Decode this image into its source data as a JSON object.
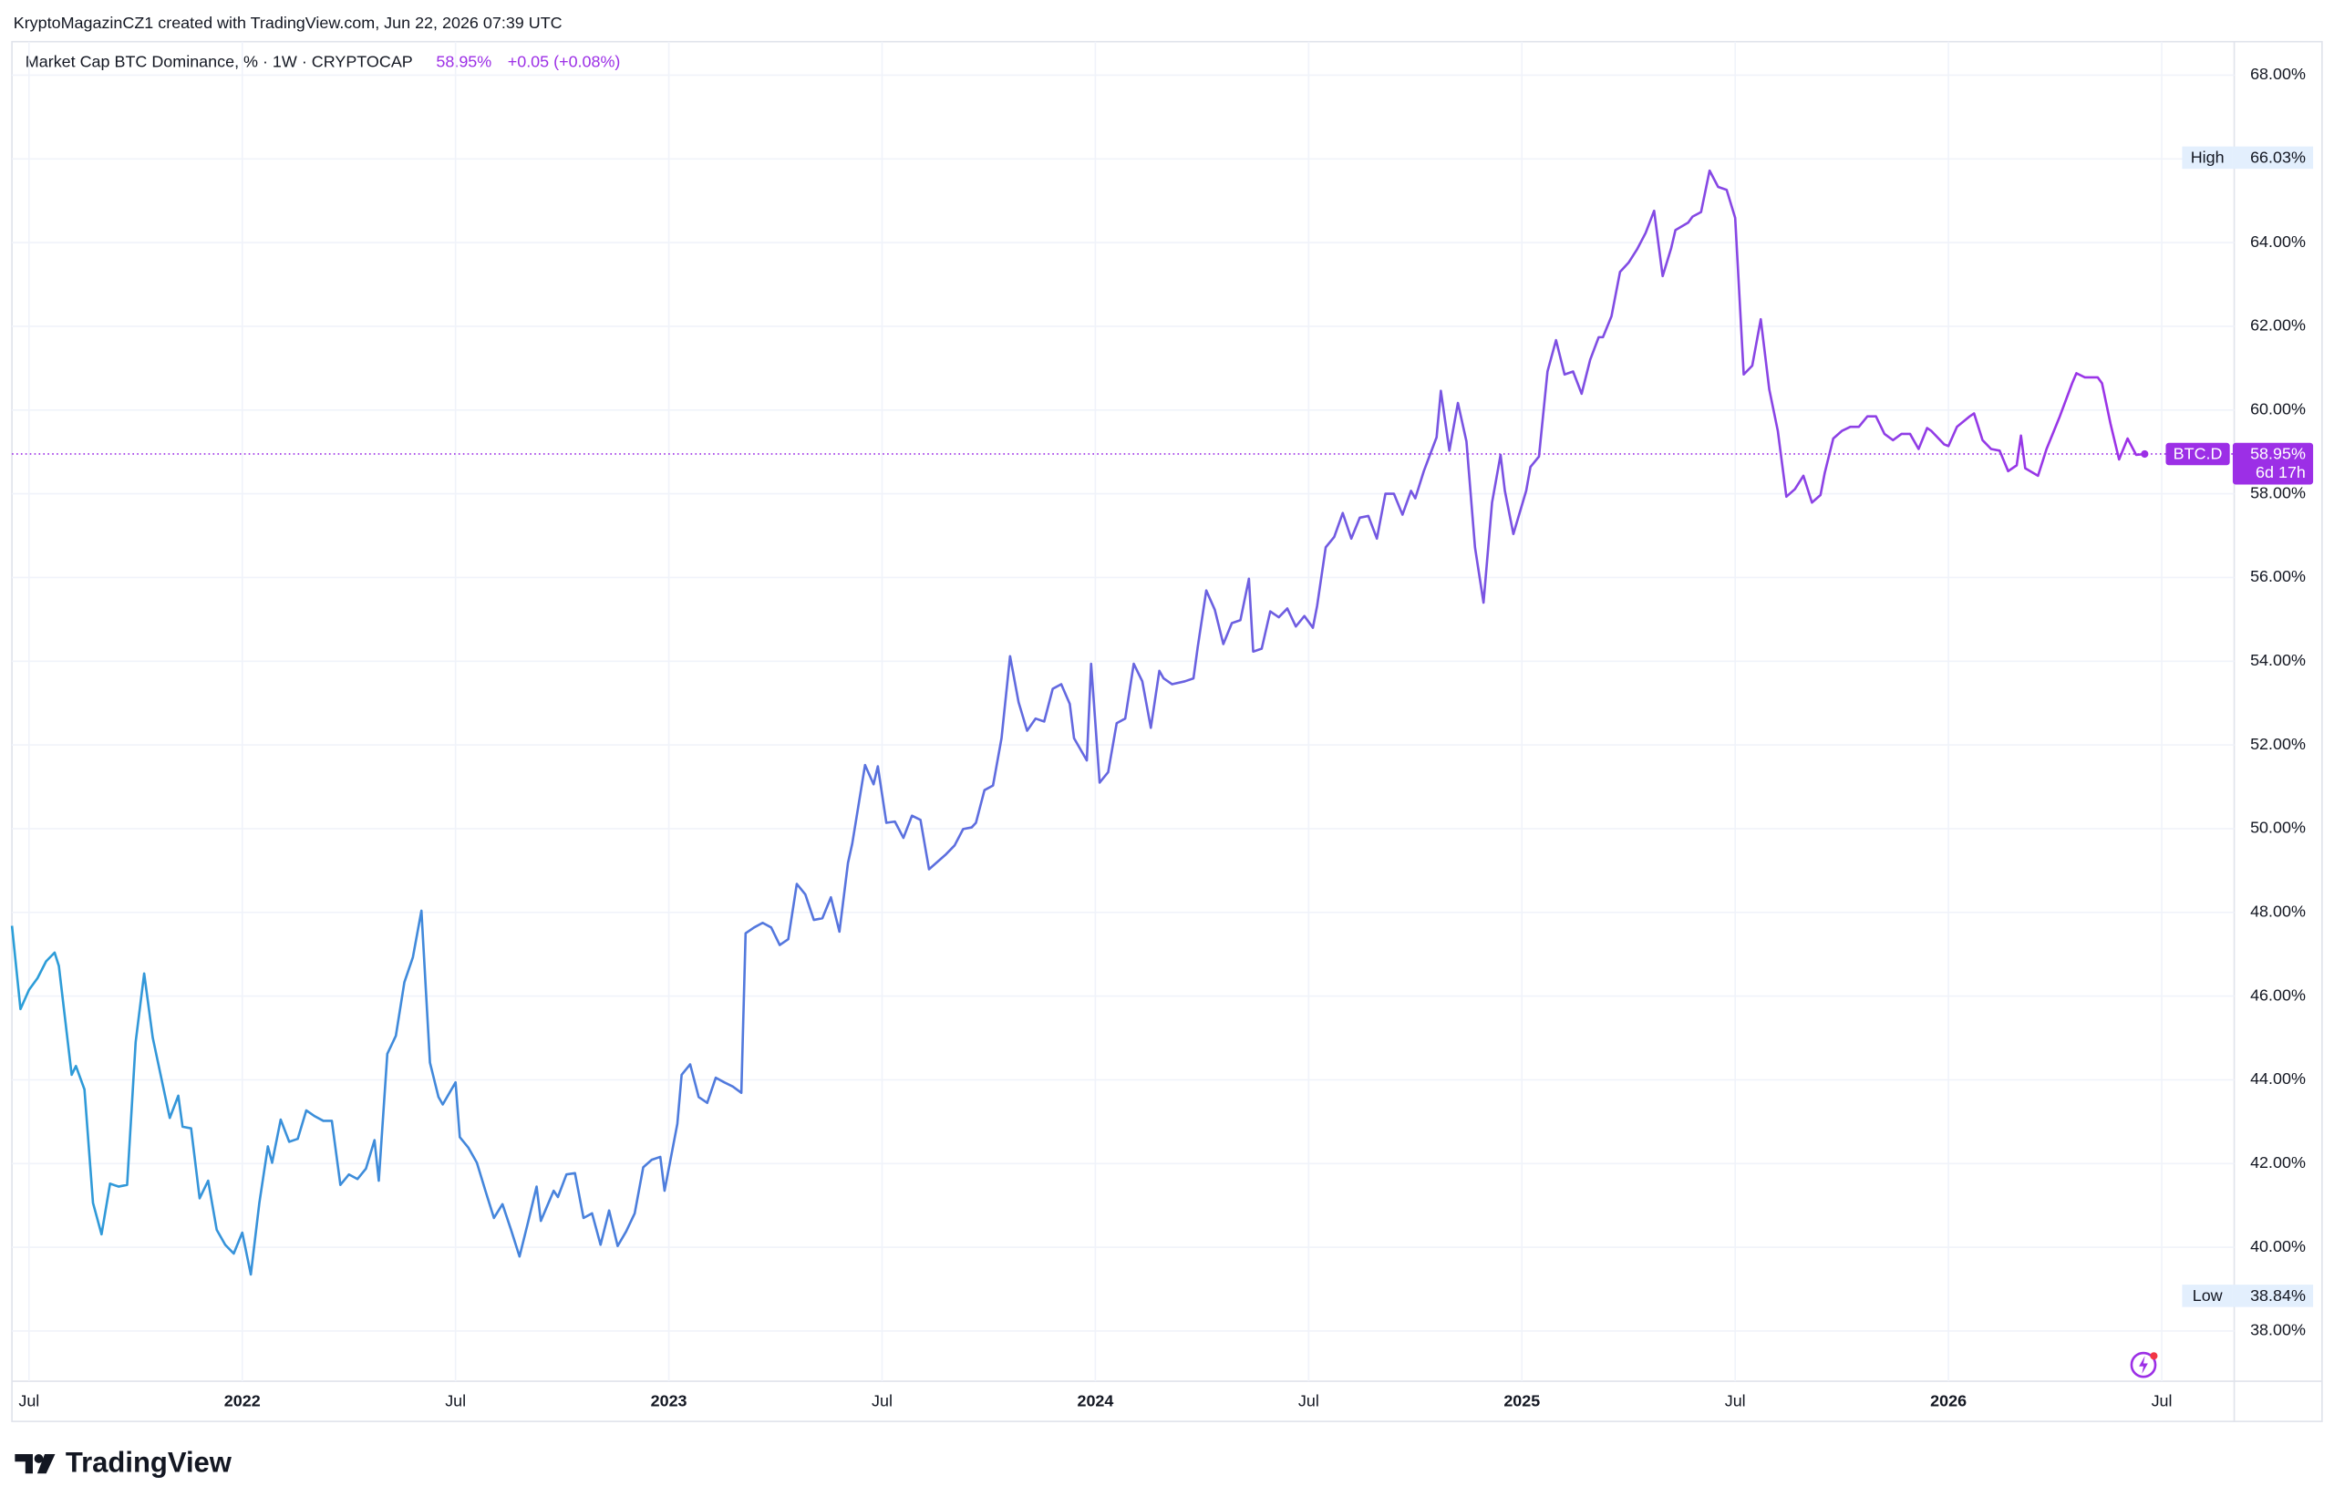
{
  "chart_data": {
    "type": "line",
    "attribution": "KryptoMagazinCZ1 created with TradingView.com, Jun 22, 2026 07:39 UTC",
    "brand": "TradingView",
    "change_label": "+0.05 (+0.08%)",
    "x": [
      2021.46,
      2021.48,
      2021.5,
      2021.52,
      2021.54,
      2021.56,
      2021.57,
      2021.6,
      2021.61,
      2021.63,
      2021.65,
      2021.67,
      2021.69,
      2021.71,
      2021.73,
      2021.75,
      2021.77,
      2021.79,
      2021.81,
      2021.83,
      2021.85,
      2021.86,
      2021.88,
      2021.9,
      2021.92,
      2021.94,
      2021.96,
      2021.98,
      2022.0,
      2022.02,
      2022.04,
      2022.06,
      2022.07,
      2022.09,
      2022.11,
      2022.13,
      2022.15,
      2022.17,
      2022.19,
      2022.21,
      2022.23,
      2022.25,
      2022.27,
      2022.29,
      2022.31,
      2022.32,
      2022.34,
      2022.36,
      2022.38,
      2022.4,
      2022.42,
      2022.44,
      2022.46,
      2022.47,
      2022.5,
      2022.51,
      2022.53,
      2022.55,
      2022.57,
      2022.59,
      2022.61,
      2022.63,
      2022.65,
      2022.67,
      2022.69,
      2022.7,
      2022.73,
      2022.74,
      2022.76,
      2022.78,
      2022.8,
      2022.82,
      2022.84,
      2022.86,
      2022.88,
      2022.9,
      2022.92,
      2022.94,
      2022.96,
      2022.98,
      2022.99,
      2023.02,
      2023.03,
      2023.05,
      2023.07,
      2023.09,
      2023.11,
      2023.13,
      2023.15,
      2023.17,
      2023.18,
      2023.2,
      2023.22,
      2023.24,
      2023.26,
      2023.28,
      2023.3,
      2023.32,
      2023.34,
      2023.36,
      2023.38,
      2023.4,
      2023.42,
      2023.43,
      2023.46,
      2023.48,
      2023.49,
      2023.51,
      2023.53,
      2023.55,
      2023.57,
      2023.59,
      2023.61,
      2023.63,
      2023.65,
      2023.67,
      2023.69,
      2023.71,
      2023.72,
      2023.74,
      2023.76,
      2023.78,
      2023.8,
      2023.82,
      2023.84,
      2023.86,
      2023.88,
      2023.9,
      2023.92,
      2023.94,
      2023.95,
      2023.98,
      2023.99,
      2024.01,
      2024.03,
      2024.05,
      2024.07,
      2024.09,
      2024.11,
      2024.13,
      2024.15,
      2024.16,
      2024.18,
      2024.21,
      2024.23,
      2024.24,
      2024.26,
      2024.28,
      2024.3,
      2024.32,
      2024.34,
      2024.36,
      2024.37,
      2024.39,
      2024.41,
      2024.43,
      2024.45,
      2024.47,
      2024.49,
      2024.51,
      2024.52,
      2024.54,
      2024.56,
      2024.58,
      2024.6,
      2024.62,
      2024.64,
      2024.66,
      2024.68,
      2024.7,
      2024.72,
      2024.74,
      2024.75,
      2024.77,
      2024.8,
      2024.81,
      2024.83,
      2024.85,
      2024.87,
      2024.89,
      2024.91,
      2024.93,
      2024.95,
      2024.96,
      2024.98,
      2025.01,
      2025.02,
      2025.04,
      2025.06,
      2025.08,
      2025.1,
      2025.12,
      2025.14,
      2025.16,
      2025.18,
      2025.19,
      2025.21,
      2025.23,
      2025.25,
      2025.27,
      2025.29,
      2025.31,
      2025.33,
      2025.35,
      2025.36,
      2025.39,
      2025.4,
      2025.42,
      2025.44,
      2025.46,
      2025.48,
      2025.5,
      2025.52,
      2025.54,
      2025.56,
      2025.58,
      2025.6,
      2025.62,
      2025.64,
      2025.66,
      2025.68,
      2025.7,
      2025.71,
      2025.73,
      2025.75,
      2025.77,
      2025.79,
      2025.81,
      2025.83,
      2025.85,
      2025.87,
      2025.89,
      2025.91,
      2025.93,
      2025.95,
      2025.96,
      2025.99,
      2026.0,
      2026.02,
      2026.05,
      2026.06,
      2026.08,
      2026.1,
      2026.12,
      2026.14,
      2026.16,
      2026.17,
      2026.18,
      2026.21,
      2026.23,
      2026.24,
      2026.26,
      2026.29,
      2026.3,
      2026.32,
      2026.35,
      2026.36,
      2026.38,
      2026.4,
      2026.42,
      2026.44,
      2026.46
    ],
    "series": [
      {
        "name": "Market Cap BTC Dominance, % · 1W · CRYPTOCAP",
        "colors": [
          "#2b9ed8",
          "#a22de8"
        ],
        "values": [
          47.68,
          45.69,
          46.15,
          46.43,
          46.83,
          47.04,
          46.72,
          44.12,
          44.33,
          43.77,
          41.06,
          40.31,
          41.52,
          41.45,
          41.49,
          44.9,
          46.54,
          45.01,
          44.05,
          43.09,
          43.62,
          42.88,
          42.84,
          41.17,
          41.59,
          40.42,
          40.06,
          39.85,
          40.35,
          39.35,
          41.06,
          42.41,
          42.02,
          43.05,
          42.52,
          42.59,
          43.27,
          43.13,
          43.02,
          43.02,
          41.49,
          41.74,
          41.63,
          41.88,
          42.56,
          41.59,
          44.62,
          45.05,
          46.33,
          46.93,
          48.04,
          44.41,
          43.59,
          43.41,
          43.94,
          42.63,
          42.38,
          42.02,
          41.35,
          40.7,
          41.03,
          40.42,
          39.78,
          40.6,
          41.45,
          40.63,
          41.35,
          41.2,
          41.74,
          41.77,
          40.7,
          40.81,
          40.06,
          40.88,
          40.03,
          40.38,
          40.81,
          41.91,
          42.09,
          42.16,
          41.35,
          42.95,
          44.12,
          44.37,
          43.59,
          43.45,
          44.05,
          43.94,
          43.84,
          43.69,
          47.5,
          47.64,
          47.75,
          47.64,
          47.22,
          47.36,
          48.68,
          48.43,
          47.82,
          47.86,
          48.36,
          47.54,
          49.18,
          49.64,
          51.52,
          51.06,
          51.49,
          50.14,
          50.17,
          49.78,
          50.31,
          50.21,
          49.03,
          49.21,
          49.39,
          49.6,
          49.99,
          50.03,
          50.14,
          50.92,
          51.03,
          52.16,
          54.12,
          53.02,
          52.34,
          52.63,
          52.56,
          53.34,
          53.45,
          52.98,
          52.16,
          51.63,
          53.94,
          51.1,
          51.35,
          52.52,
          52.63,
          53.94,
          53.52,
          52.41,
          53.77,
          53.59,
          53.45,
          53.52,
          53.59,
          54.34,
          55.69,
          55.23,
          54.41,
          54.91,
          54.98,
          55.97,
          54.23,
          54.3,
          55.19,
          55.05,
          55.26,
          54.83,
          55.08,
          54.8,
          55.33,
          56.72,
          56.97,
          57.54,
          56.93,
          57.43,
          57.47,
          56.93,
          58.0,
          58.0,
          57.5,
          58.07,
          57.89,
          58.54,
          59.35,
          60.46,
          59.03,
          60.17,
          59.25,
          56.72,
          55.4,
          57.79,
          58.93,
          58.07,
          57.04,
          58.07,
          58.64,
          58.89,
          60.92,
          61.67,
          60.85,
          60.92,
          60.39,
          61.2,
          61.74,
          61.74,
          62.24,
          63.3,
          63.52,
          63.84,
          64.23,
          64.76,
          63.2,
          63.87,
          64.3,
          64.48,
          64.62,
          64.73,
          65.72,
          65.33,
          65.26,
          64.59,
          60.85,
          61.06,
          62.17,
          60.49,
          59.5,
          57.93,
          58.11,
          58.43,
          57.79,
          57.97,
          58.5,
          59.32,
          59.5,
          59.6,
          59.6,
          59.85,
          59.85,
          59.43,
          59.28,
          59.43,
          59.43,
          59.07,
          59.57,
          59.5,
          59.18,
          59.14,
          59.6,
          59.85,
          59.92,
          59.28,
          59.07,
          59.03,
          58.54,
          58.68,
          59.39,
          58.61,
          58.43,
          59.07,
          59.32,
          59.82,
          60.64,
          60.88,
          60.78,
          60.78,
          60.64,
          59.67,
          58.82,
          59.32,
          58.93,
          58.95
        ]
      }
    ],
    "last": {
      "name": "BTC.D",
      "value": 58.95,
      "value_label": "58.95%",
      "countdown": "6d 17h",
      "color": "#9c2fe6"
    },
    "high": {
      "label": "High",
      "value": 66.03,
      "value_label": "66.03%"
    },
    "low": {
      "label": "Low",
      "value": 38.84,
      "value_label": "38.84%"
    },
    "xlim": [
      2021.46,
      2026.67
    ],
    "xticks": [
      {
        "value": 2021.5,
        "label": "Jul"
      },
      2022,
      {
        "value": 2022.5,
        "label": "Jul"
      },
      2023,
      {
        "value": 2023.5,
        "label": "Jul"
      },
      2024,
      {
        "value": 2024.5,
        "label": "Jul"
      },
      2025,
      {
        "value": 2025.5,
        "label": "Jul"
      },
      2026,
      {
        "value": 2026.5,
        "label": "Jul"
      }
    ],
    "ylim": [
      36.8,
      68.8
    ],
    "yticks": [
      {
        "value": 38,
        "label": "38.00%"
      },
      {
        "value": 40,
        "label": "40.00%"
      },
      {
        "value": 42,
        "label": "42.00%"
      },
      {
        "value": 44,
        "label": "44.00%"
      },
      {
        "value": 46,
        "label": "46.00%"
      },
      {
        "value": 48,
        "label": "48.00%"
      },
      {
        "value": 50,
        "label": "50.00%"
      },
      {
        "value": 52,
        "label": "52.00%"
      },
      {
        "value": 54,
        "label": "54.00%"
      },
      {
        "value": 56,
        "label": "56.00%"
      },
      {
        "value": 58,
        "label": "58.00%"
      },
      {
        "value": 60,
        "label": "60.00%"
      },
      {
        "value": 62,
        "label": "62.00%"
      },
      {
        "value": 64,
        "label": "64.00%"
      },
      {
        "value": 66,
        "label": "66.00%"
      },
      {
        "value": 68,
        "label": "68.00%"
      }
    ],
    "grid": true
  }
}
